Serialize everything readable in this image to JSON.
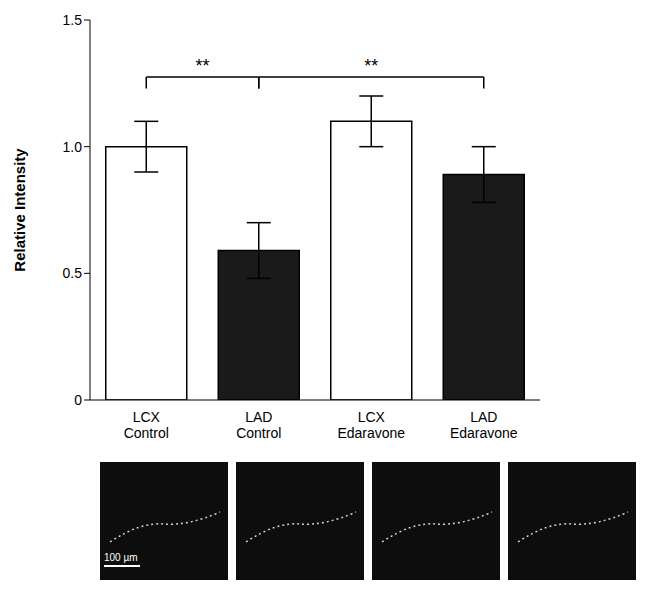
{
  "chart_data": {
    "type": "bar",
    "categories": [
      "LCX Control",
      "LAD Control",
      "LCX Edaravone",
      "LAD Edaravone"
    ],
    "values": [
      1.0,
      0.59,
      1.1,
      0.89
    ],
    "errors": [
      0.1,
      0.11,
      0.1,
      0.11
    ],
    "colors": [
      "#ffffff",
      "#1a1a1a",
      "#ffffff",
      "#1a1a1a"
    ],
    "y_label": "Relative Intensity",
    "ylim": [
      0,
      1.5
    ],
    "yticks": [
      0,
      0.5,
      {
        "value": 1,
        "label": "1.0"
      },
      1.5
    ],
    "grid": false,
    "significance": [
      {
        "from": 0,
        "to": 1,
        "label": "**"
      },
      {
        "from": 1,
        "to": 3,
        "label": "**"
      }
    ],
    "scale_bar_label": "100 µm"
  }
}
